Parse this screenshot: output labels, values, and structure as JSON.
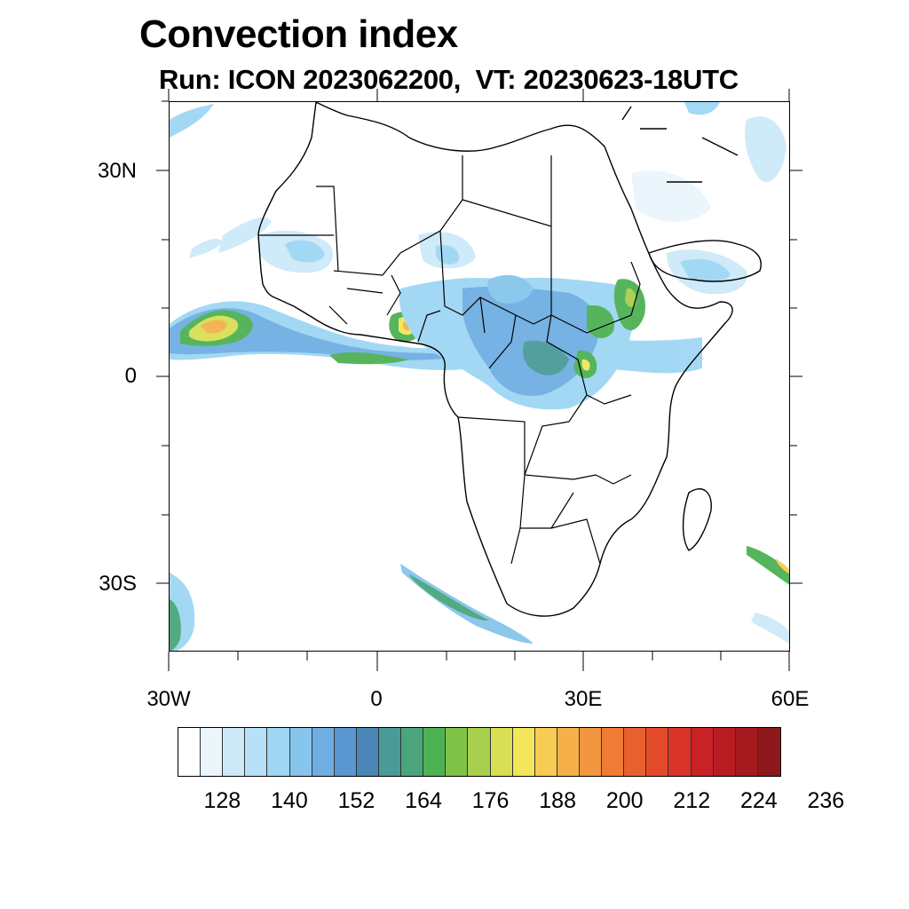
{
  "title": "Convection index",
  "subtitle": "Run: ICON 2023062200,  VT: 20230623-18UTC",
  "lat_labels": [
    "30N",
    "0",
    "30S"
  ],
  "lon_labels": [
    "30W",
    "0",
    "30E",
    "60E"
  ],
  "colorbar": {
    "colors": [
      "#ffffff",
      "#eaf6fc",
      "#cde9f8",
      "#b8e0f6",
      "#9fd6f4",
      "#86c5ec",
      "#6faee2",
      "#5a96cf",
      "#4a86b8",
      "#4a9a98",
      "#4aa67a",
      "#4db254",
      "#7fc248",
      "#a9cf4e",
      "#d8df55",
      "#f3e65a",
      "#f7cc55",
      "#f5b04a",
      "#f39640",
      "#ee7b36",
      "#e9602e",
      "#e34a2a",
      "#d83428",
      "#c82226",
      "#b81c22",
      "#a51a1f",
      "#8e171b"
    ],
    "tick_labels": [
      "128",
      "140",
      "152",
      "164",
      "176",
      "188",
      "200",
      "212",
      "224",
      "236"
    ]
  },
  "map": {
    "lon_range": [
      -30,
      60
    ],
    "lat_range": [
      -40,
      40
    ],
    "field": "Convection index"
  }
}
